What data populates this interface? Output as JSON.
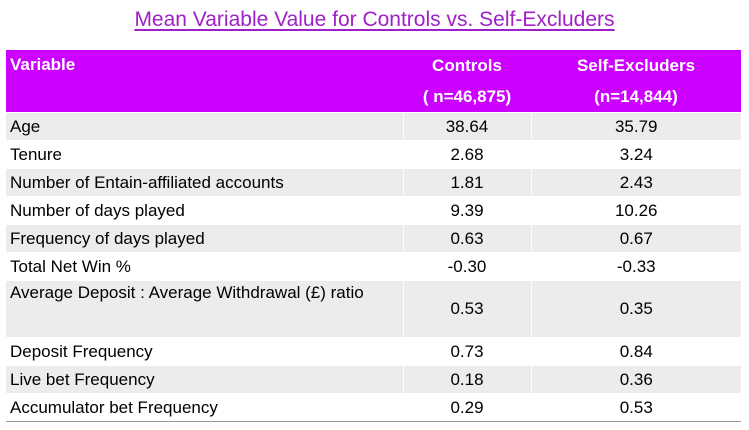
{
  "title": "Mean Variable Value for Controls vs. Self-Excluders",
  "headers": {
    "variable": "Variable",
    "controls": "Controls",
    "controls_n": "( n=46,875)",
    "self_excluders": "Self-Excluders",
    "self_excluders_n": "(n=14,844)"
  },
  "rows": [
    {
      "variable": "Age",
      "controls": "38.64",
      "self_excluders": "35.79"
    },
    {
      "variable": "Tenure",
      "controls": "2.68",
      "self_excluders": "3.24"
    },
    {
      "variable": "Number of Entain-affiliated accounts",
      "controls": "1.81",
      "self_excluders": "2.43"
    },
    {
      "variable": "Number of days played",
      "controls": "9.39",
      "self_excluders": "10.26"
    },
    {
      "variable": "Frequency of days played",
      "controls": "0.63",
      "self_excluders": "0.67"
    },
    {
      "variable": "Total Net Win %",
      "controls": "-0.30",
      "self_excluders": "-0.33"
    },
    {
      "variable": "Average Deposit : Average Withdrawal (£) ratio",
      "controls": "0.53",
      "self_excluders": "0.35"
    },
    {
      "variable": "Deposit Frequency",
      "controls": "0.73",
      "self_excluders": "0.84"
    },
    {
      "variable": "Live bet Frequency",
      "controls": "0.18",
      "self_excluders": "0.36"
    },
    {
      "variable": "Accumulator bet Frequency",
      "controls": "0.29",
      "self_excluders": "0.53"
    }
  ],
  "colors": {
    "title": "#a020c8",
    "header_background": "#cc00ff",
    "header_text": "#ffffff",
    "row_shade": "#ececec"
  }
}
